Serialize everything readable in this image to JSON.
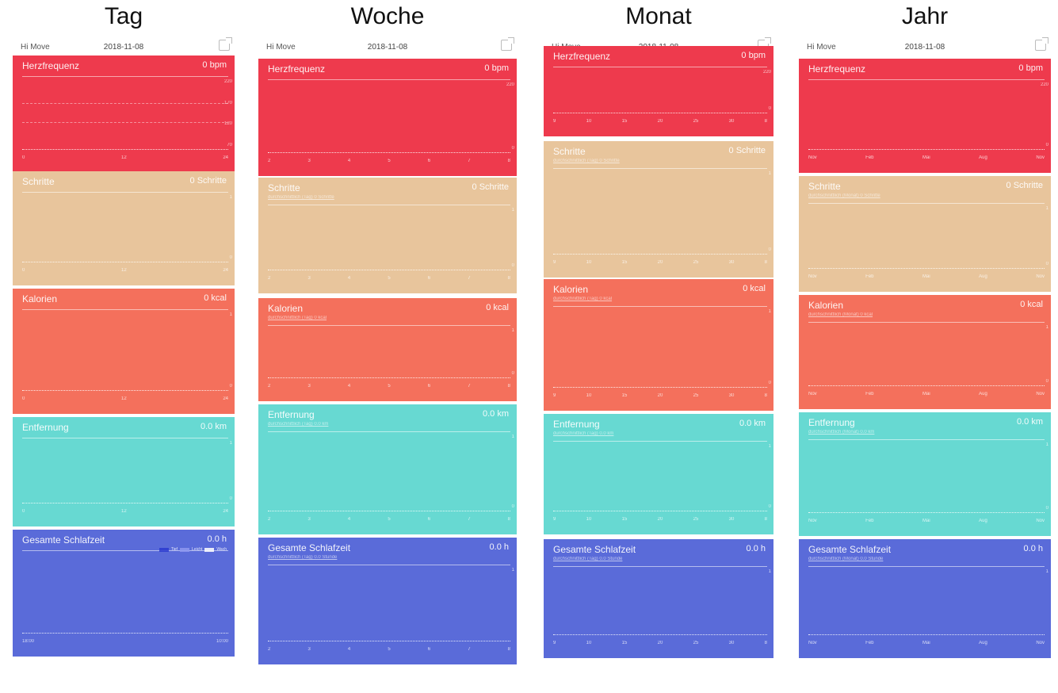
{
  "views": [
    {
      "heading": "Tag",
      "app_name": "Hi Move",
      "date": "2018-11-08",
      "tabs": [
        "Tag",
        "Woche",
        "Monat",
        "Jahr"
      ],
      "active_tab": 0,
      "panels": [
        {
          "title": "Herzfrequenz",
          "subtitle": "",
          "value": "0 bpm",
          "color": "#ee3a4d",
          "ticks": [
            "0",
            "12",
            "24"
          ],
          "y_labels": [
            "220",
            "170",
            "120",
            "70"
          ]
        },
        {
          "title": "Schritte",
          "subtitle": "",
          "value": "0 Schritte",
          "color": "#e8c59c",
          "ticks": [
            "0",
            "12",
            "24"
          ],
          "y_labels": [
            "1",
            "0"
          ]
        },
        {
          "title": "Kalorien",
          "subtitle": "",
          "value": "0 kcal",
          "color": "#f4705c",
          "ticks": [
            "0",
            "12",
            "24"
          ],
          "y_labels": [
            "1",
            "0"
          ]
        },
        {
          "title": "Entfernung",
          "subtitle": "",
          "value": "0.0 km",
          "color": "#67d9d2",
          "ticks": [
            "0",
            "12",
            "24"
          ],
          "y_labels": [
            "1",
            "0"
          ]
        },
        {
          "title": "Gesamte Schlafzeit",
          "subtitle": "",
          "value": "0.0 h",
          "color": "#5a6bd9",
          "ticks": [
            "18:00",
            "10:00"
          ],
          "legend": [
            "Tief",
            "Leicht",
            "Wach"
          ]
        }
      ]
    },
    {
      "heading": "Woche",
      "app_name": "Hi Move",
      "date": "2018-11-08",
      "tabs": [
        "Tag",
        "Woche",
        "Monat",
        "Jahr"
      ],
      "active_tab": 1,
      "panels": [
        {
          "title": "Herzfrequenz",
          "subtitle": "",
          "value": "0 bpm",
          "color": "#ee3a4d",
          "ticks": [
            "2",
            "3",
            "4",
            "5",
            "6",
            "7",
            "8"
          ],
          "y_labels": [
            "220",
            "0"
          ]
        },
        {
          "title": "Schritte",
          "subtitle": "durchschnittlich (Tag) 0 Schritte",
          "value": "0 Schritte",
          "color": "#e8c59c",
          "ticks": [
            "2",
            "3",
            "4",
            "5",
            "6",
            "7",
            "8"
          ],
          "y_labels": [
            "1",
            "0"
          ]
        },
        {
          "title": "Kalorien",
          "subtitle": "durchschnittlich (Tag) 0 kcal",
          "value": "0 kcal",
          "color": "#f4705c",
          "ticks": [
            "2",
            "3",
            "4",
            "5",
            "6",
            "7",
            "8"
          ],
          "y_labels": [
            "1",
            "0"
          ]
        },
        {
          "title": "Entfernung",
          "subtitle": "durchschnittlich (Tag) 0.0 km",
          "value": "0.0 km",
          "color": "#67d9d2",
          "ticks": [
            "2",
            "3",
            "4",
            "5",
            "6",
            "7",
            "8"
          ],
          "y_labels": [
            "1",
            "0"
          ]
        },
        {
          "title": "Gesamte Schlafzeit",
          "subtitle": "durchschnittlich (Tag) 0.0 Stunde",
          "value": "0.0 h",
          "color": "#5a6bd9",
          "ticks": [
            "2",
            "3",
            "4",
            "5",
            "6",
            "7",
            "8"
          ],
          "y_labels": [
            "1"
          ]
        }
      ]
    },
    {
      "heading": "Monat",
      "app_name": "Hi Move",
      "date": "2018-11-08",
      "tabs": [
        "Tag",
        "Woche",
        "Monat",
        "Jahr"
      ],
      "active_tab": 2,
      "panels": [
        {
          "title": "Herzfrequenz",
          "subtitle": "",
          "value": "0 bpm",
          "color": "#ee3a4d",
          "ticks": [
            "9",
            "10",
            "15",
            "20",
            "25",
            "30",
            "8"
          ],
          "y_labels": [
            "220",
            "0"
          ]
        },
        {
          "title": "Schritte",
          "subtitle": "durchschnittlich (Tag) 0 Schritte",
          "value": "0 Schritte",
          "color": "#e8c59c",
          "ticks": [
            "9",
            "10",
            "15",
            "20",
            "25",
            "30",
            "8"
          ],
          "y_labels": [
            "1",
            "0"
          ]
        },
        {
          "title": "Kalorien",
          "subtitle": "durchschnittlich (Tag) 0 kcal",
          "value": "0 kcal",
          "color": "#f4705c",
          "ticks": [
            "9",
            "10",
            "15",
            "20",
            "25",
            "30",
            "8"
          ],
          "y_labels": [
            "1",
            "0"
          ]
        },
        {
          "title": "Entfernung",
          "subtitle": "durchschnittlich (Tag) 0.0 km",
          "value": "0.0 km",
          "color": "#67d9d2",
          "ticks": [
            "9",
            "10",
            "15",
            "20",
            "25",
            "30",
            "8"
          ],
          "y_labels": [
            "1",
            "0"
          ]
        },
        {
          "title": "Gesamte Schlafzeit",
          "subtitle": "durchschnittlich (Tag) 0.0 Stunde",
          "value": "0.0 h",
          "color": "#5a6bd9",
          "ticks": [
            "9",
            "10",
            "15",
            "20",
            "25",
            "30",
            "8"
          ],
          "y_labels": [
            "1"
          ]
        }
      ]
    },
    {
      "heading": "Jahr",
      "app_name": "Hi Move",
      "date": "2018-11-08",
      "tabs": [
        "Tag",
        "Woche",
        "Monat",
        "Jahr"
      ],
      "active_tab": 3,
      "panels": [
        {
          "title": "Herzfrequenz",
          "subtitle": "",
          "value": "0 bpm",
          "color": "#ee3a4d",
          "ticks": [
            "Nov",
            "Feb",
            "Mai",
            "Aug",
            "Nov"
          ],
          "y_labels": [
            "220",
            "0"
          ]
        },
        {
          "title": "Schritte",
          "subtitle": "durchschnittlich (Monat) 0 Schritte",
          "value": "0 Schritte",
          "color": "#e8c59c",
          "ticks": [
            "Nov",
            "Feb",
            "Mai",
            "Aug",
            "Nov"
          ],
          "y_labels": [
            "1",
            "0"
          ]
        },
        {
          "title": "Kalorien",
          "subtitle": "durchschnittlich (Monat) 0 kcal",
          "value": "0 kcal",
          "color": "#f4705c",
          "ticks": [
            "Nov",
            "Feb",
            "Mai",
            "Aug",
            "Nov"
          ],
          "y_labels": [
            "1",
            "0"
          ]
        },
        {
          "title": "Entfernung",
          "subtitle": "durchschnittlich (Monat) 0.0 km",
          "value": "0.0 km",
          "color": "#67d9d2",
          "ticks": [
            "Nov",
            "Feb",
            "Mai",
            "Aug",
            "Nov"
          ],
          "y_labels": [
            "1",
            "0"
          ]
        },
        {
          "title": "Gesamte Schlafzeit",
          "subtitle": "durchschnittlich (Monat) 0.0 Stunde",
          "value": "0.0 h",
          "color": "#5a6bd9",
          "ticks": [
            "Nov",
            "Feb",
            "Mai",
            "Aug",
            "Nov"
          ],
          "y_labels": [
            "1"
          ]
        }
      ]
    }
  ]
}
